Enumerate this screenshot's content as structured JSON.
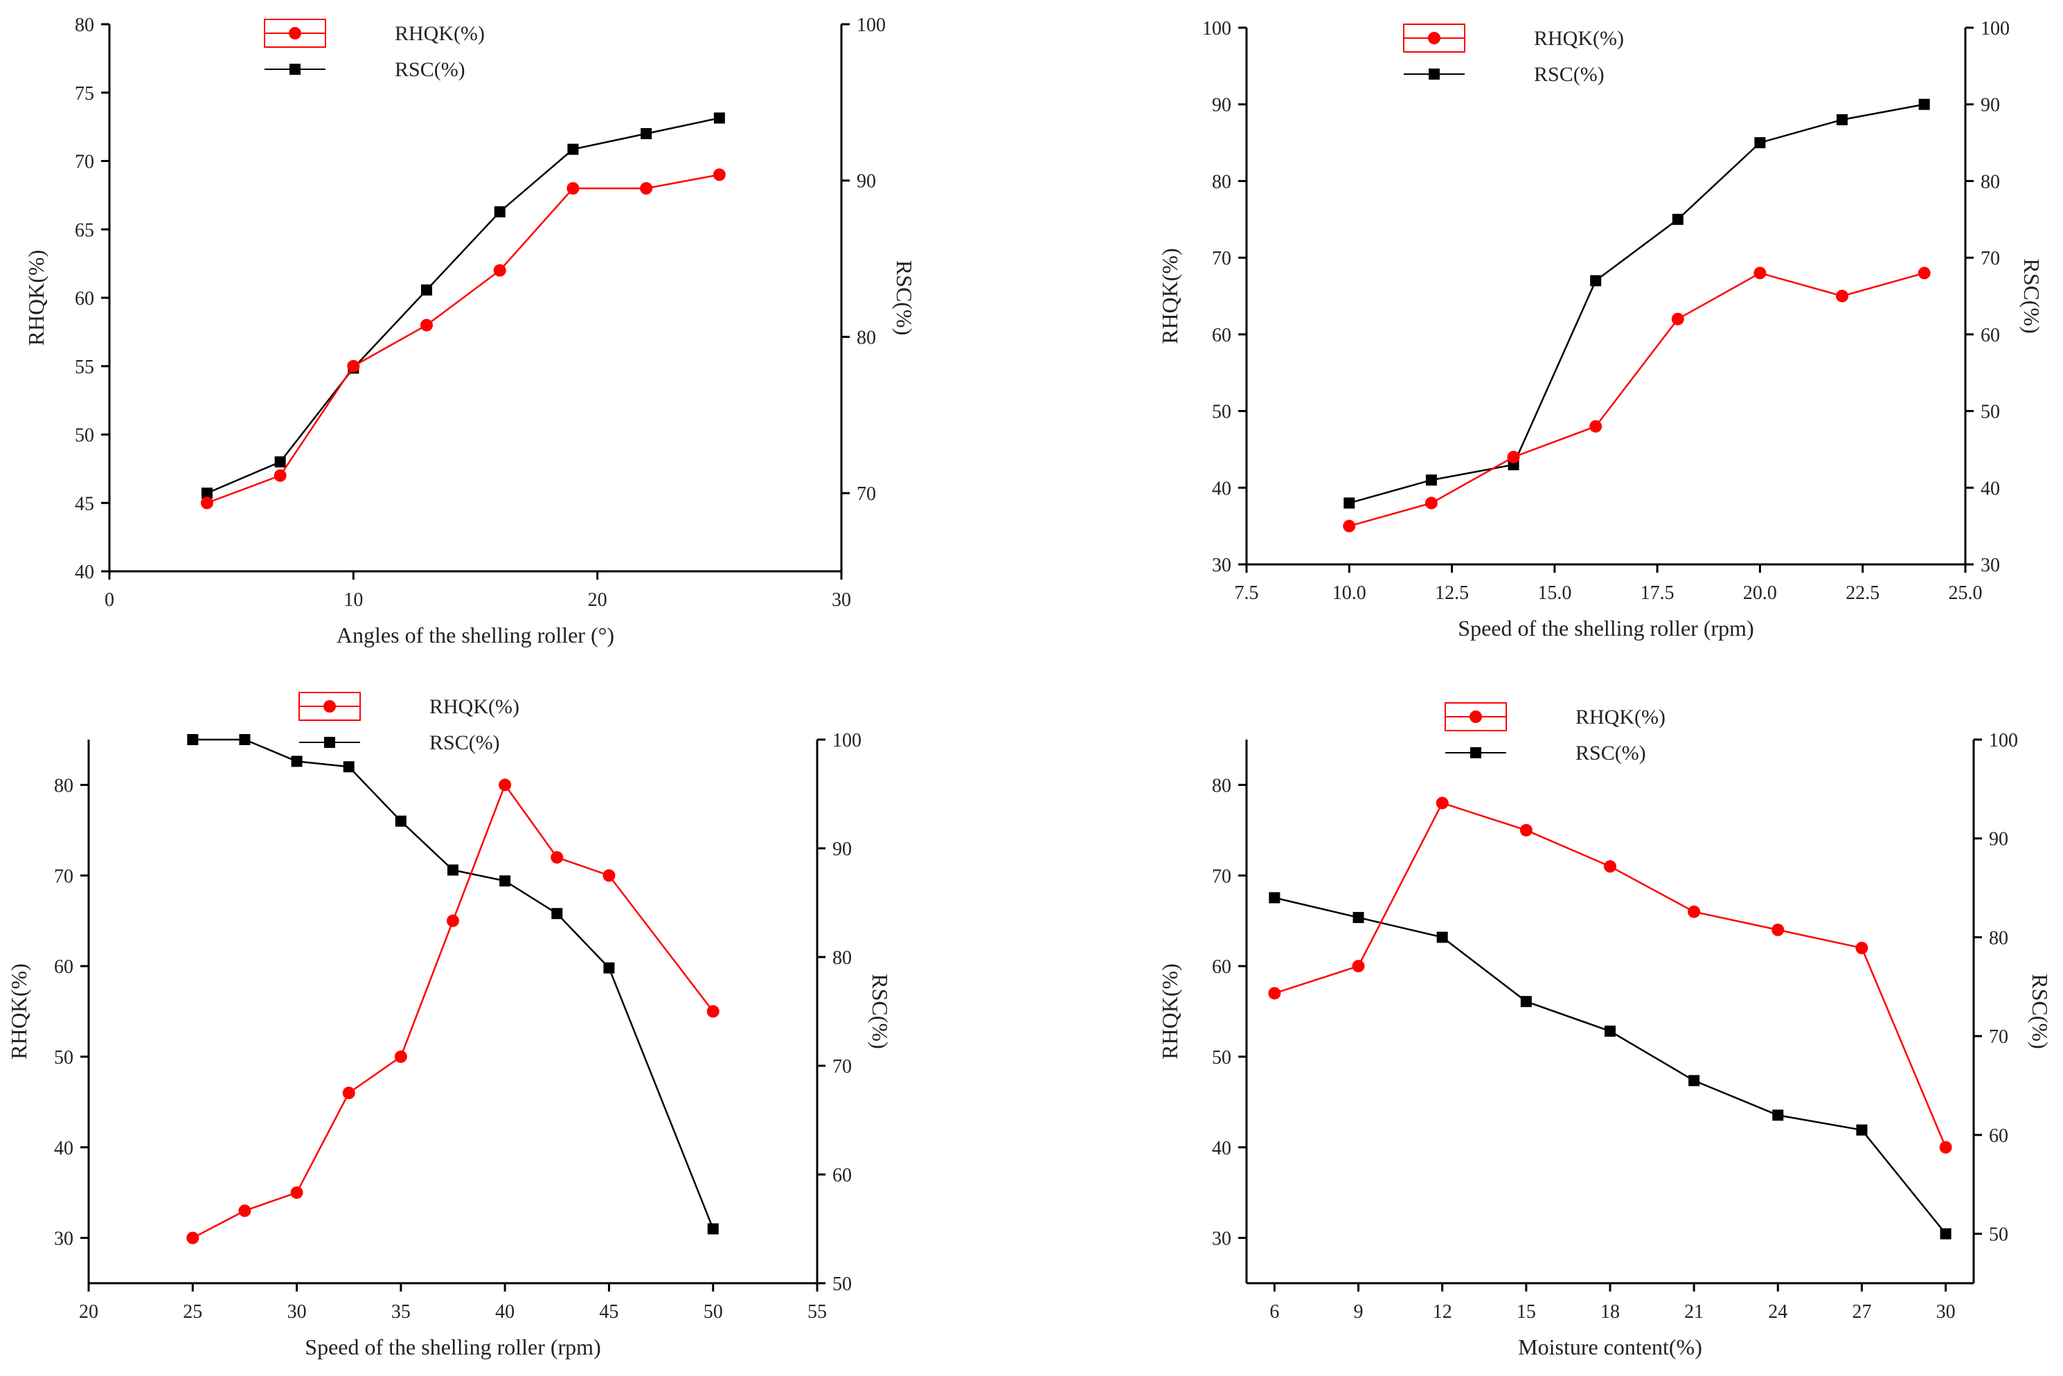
{
  "colors": {
    "rhqk": "#ff0000",
    "rsc": "#000000"
  },
  "chart_data": [
    {
      "type": "line",
      "xlabel": "Angles of the shelling roller (°)",
      "ylabel_left": "RHQK(%)",
      "ylabel_right": "RSC(%)",
      "xlim": [
        0,
        30
      ],
      "xticks": [
        0,
        10,
        20,
        30
      ],
      "ylim_left": [
        40,
        80
      ],
      "yticks_left": [
        40,
        45,
        50,
        55,
        60,
        65,
        70,
        75,
        80
      ],
      "ylim_right": [
        65,
        100
      ],
      "yticks_right": [
        70,
        80,
        90,
        100
      ],
      "x_tick_labels": [
        "0",
        "10",
        "20",
        "30"
      ],
      "y_left_tick_labels": [
        "40",
        "45",
        "50",
        "55",
        "60",
        "65",
        "70",
        "75",
        "80"
      ],
      "y_right_tick_labels": [
        "70",
        "80",
        "90",
        "100"
      ],
      "legend": [
        "RHQK(%)",
        "RSC(%)"
      ],
      "series": [
        {
          "name": "RHQK(%)",
          "axis": "left",
          "x": [
            4,
            7,
            10,
            13,
            16,
            19,
            22,
            25
          ],
          "y": [
            45,
            47,
            55,
            58,
            62,
            68,
            68,
            69
          ]
        },
        {
          "name": "RSC(%)",
          "axis": "right",
          "x": [
            4,
            7,
            10,
            13,
            16,
            19,
            22,
            25
          ],
          "y": [
            70,
            72,
            78,
            83,
            88,
            92,
            93,
            94
          ]
        }
      ]
    },
    {
      "type": "line",
      "xlabel": "Speed of the shelling roller (rpm)",
      "ylabel_left": "RHQK(%)",
      "ylabel_right": "RSC(%)",
      "xlim": [
        7.5,
        25.0
      ],
      "xticks": [
        7.5,
        10.0,
        12.5,
        15.0,
        17.5,
        20.0,
        22.5,
        25.0
      ],
      "ylim_left": [
        30,
        100
      ],
      "yticks_left": [
        30,
        40,
        50,
        60,
        70,
        80,
        90,
        100
      ],
      "ylim_right": [
        30,
        100
      ],
      "yticks_right": [
        30,
        40,
        50,
        60,
        70,
        80,
        90,
        100
      ],
      "x_tick_labels": [
        "7.5",
        "10.0",
        "12.5",
        "15.0",
        "17.5",
        "20.0",
        "22.5",
        "25.0"
      ],
      "y_left_tick_labels": [
        "30",
        "40",
        "50",
        "60",
        "70",
        "80",
        "90",
        "100"
      ],
      "y_right_tick_labels": [
        "30",
        "40",
        "50",
        "60",
        "70",
        "80",
        "90",
        "100"
      ],
      "legend": [
        "RHQK(%)",
        "RSC(%)"
      ],
      "series": [
        {
          "name": "RHQK(%)",
          "axis": "left",
          "x": [
            10,
            12,
            14,
            16,
            18,
            20,
            22,
            24
          ],
          "y": [
            35,
            38,
            44,
            48,
            62,
            68,
            65,
            68
          ]
        },
        {
          "name": "RSC(%)",
          "axis": "right",
          "x": [
            10,
            12,
            14,
            16,
            18,
            20,
            22,
            24
          ],
          "y": [
            38,
            41,
            43,
            67,
            75,
            85,
            88,
            90
          ]
        }
      ]
    },
    {
      "type": "line",
      "xlabel": "Speed of the shelling roller (rpm)",
      "ylabel_left": "RHQK(%)",
      "ylabel_right": "RSC(%)",
      "xlim": [
        20,
        55
      ],
      "xticks": [
        20,
        25,
        30,
        35,
        40,
        45,
        50,
        55
      ],
      "ylim_left": [
        25,
        85
      ],
      "yticks_left": [
        30,
        40,
        50,
        60,
        70,
        80
      ],
      "ylim_right": [
        50,
        100
      ],
      "yticks_right": [
        50,
        60,
        70,
        80,
        90,
        100
      ],
      "x_tick_labels": [
        "20",
        "25",
        "30",
        "35",
        "40",
        "45",
        "50",
        "55"
      ],
      "y_left_tick_labels": [
        "30",
        "40",
        "50",
        "60",
        "70",
        "80"
      ],
      "y_right_tick_labels": [
        "50",
        "60",
        "70",
        "80",
        "90",
        "100"
      ],
      "legend": [
        "RHQK(%)",
        "RSC(%)"
      ],
      "series": [
        {
          "name": "RHQK(%)",
          "axis": "left",
          "x": [
            25,
            27.5,
            30,
            32.5,
            35,
            37.5,
            40,
            42.5,
            45,
            50
          ],
          "y": [
            30,
            33,
            35,
            46,
            50,
            65,
            80,
            72,
            70,
            55
          ]
        },
        {
          "name": "RSC(%)",
          "axis": "right",
          "x": [
            25,
            27.5,
            30,
            32.5,
            35,
            37.5,
            40,
            42.5,
            45,
            50
          ],
          "y": [
            100,
            100,
            98,
            97.5,
            92.5,
            88,
            87,
            84,
            79,
            55
          ]
        }
      ]
    },
    {
      "type": "line",
      "xlabel": "Moisture content(%)",
      "ylabel_left": "RHQK(%)",
      "ylabel_right": "RSC(%)",
      "xlim": [
        5,
        31
      ],
      "xticks": [
        6,
        9,
        12,
        15,
        18,
        21,
        24,
        27,
        30
      ],
      "ylim_left": [
        25,
        85
      ],
      "yticks_left": [
        30,
        40,
        50,
        60,
        70,
        80
      ],
      "ylim_right": [
        45,
        100
      ],
      "yticks_right": [
        50,
        60,
        70,
        80,
        90,
        100
      ],
      "x_tick_labels": [
        "6",
        "9",
        "12",
        "15",
        "18",
        "21",
        "24",
        "27",
        "30"
      ],
      "y_left_tick_labels": [
        "30",
        "40",
        "50",
        "60",
        "70",
        "80"
      ],
      "y_right_tick_labels": [
        "50",
        "60",
        "70",
        "80",
        "90",
        "100"
      ],
      "legend": [
        "RHQK(%)",
        "RSC(%)"
      ],
      "series": [
        {
          "name": "RHQK(%)",
          "axis": "left",
          "x": [
            6,
            9,
            12,
            15,
            18,
            21,
            24,
            27,
            30
          ],
          "y": [
            57,
            60,
            78,
            75,
            71,
            66,
            64,
            62,
            40
          ]
        },
        {
          "name": "RSC(%)",
          "axis": "right",
          "x": [
            6,
            9,
            12,
            15,
            18,
            21,
            24,
            27,
            30
          ],
          "y": [
            84,
            82,
            80,
            73.5,
            70.5,
            65.5,
            62,
            60.5,
            50
          ]
        }
      ]
    }
  ]
}
